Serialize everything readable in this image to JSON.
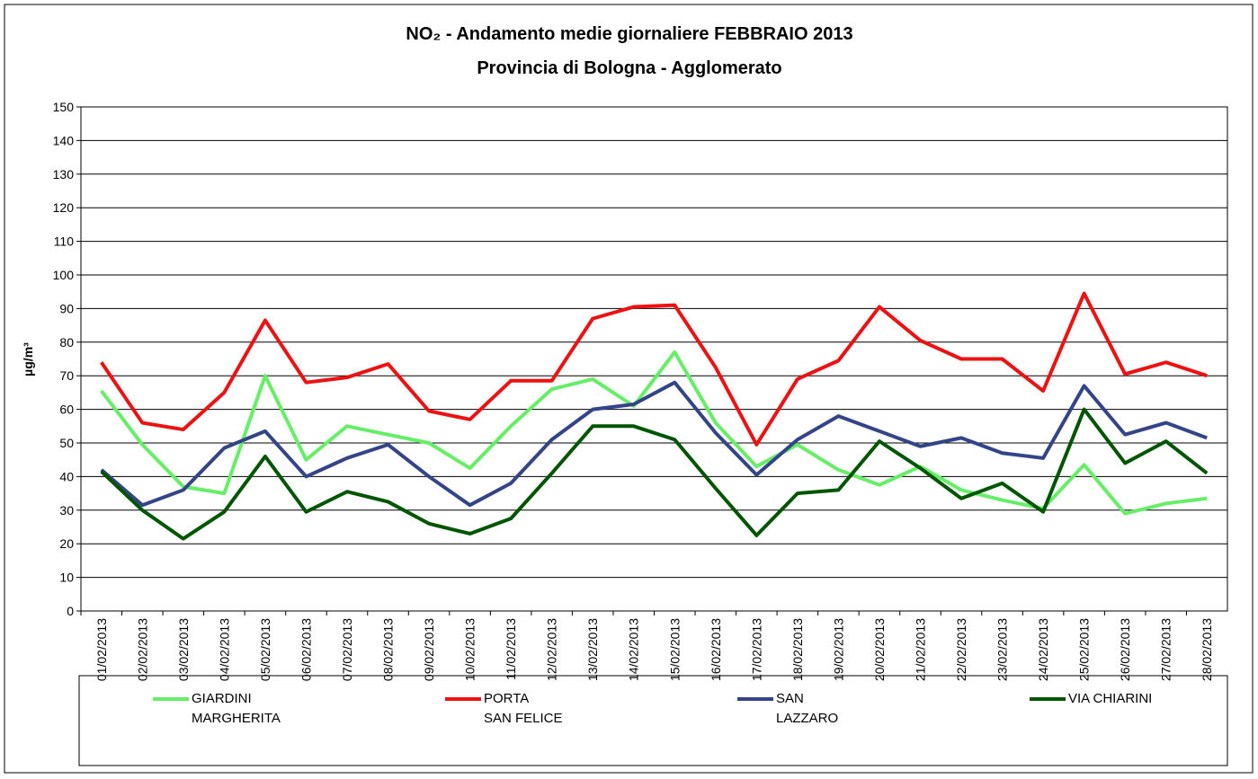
{
  "chart_data": {
    "type": "line",
    "title": [
      "NO₂ - Andamento medie giornaliere FEBBRAIO 2013",
      "Provincia di Bologna - Agglomerato"
    ],
    "ylabel": "µg/m³",
    "categories": [
      "01/02/2013",
      "02/02/2013",
      "03/02/2013",
      "04/02/2013",
      "05/02/2013",
      "06/02/2013",
      "07/02/2013",
      "08/02/2013",
      "09/02/2013",
      "10/02/2013",
      "11/02/2013",
      "12/02/2013",
      "13/02/2013",
      "14/02/2013",
      "15/02/2013",
      "16/02/2013",
      "17/02/2013",
      "18/02/2013",
      "19/02/2013",
      "20/02/2013",
      "21/02/2013",
      "22/02/2013",
      "23/02/2013",
      "24/02/2013",
      "25/02/2013",
      "26/02/2013",
      "27/02/2013",
      "28/02/2013"
    ],
    "series": [
      {
        "name": "GIARDINI\nMARGHERITA",
        "color": "#66ee66",
        "values": [
          65.5,
          49.5,
          37,
          35,
          70,
          45,
          55,
          52.5,
          50,
          42.5,
          55,
          66,
          69,
          61,
          77,
          56,
          43,
          49.5,
          42,
          37.5,
          43,
          36,
          33,
          30.5,
          43.5,
          29,
          32,
          33.5
        ]
      },
      {
        "name": "PORTA\nSAN FELICE",
        "color": "#ee1111",
        "values": [
          74,
          56,
          54,
          65,
          86.5,
          68,
          69.5,
          73.5,
          59.5,
          57,
          68.5,
          68.5,
          87,
          90.5,
          91,
          72.5,
          49.5,
          69,
          74.5,
          90.5,
          80.5,
          75,
          75,
          65.5,
          94.5,
          70.5,
          74,
          70
        ]
      },
      {
        "name": "SAN\nLAZZARO",
        "color": "#334488",
        "values": [
          42,
          31.5,
          36,
          48.5,
          53.5,
          40,
          45.5,
          49.5,
          40,
          31.5,
          38,
          51,
          60,
          61.5,
          68,
          53,
          40.5,
          51,
          58,
          53.5,
          49,
          51.5,
          47,
          45.5,
          67,
          52.5,
          56,
          51.5
        ]
      },
      {
        "name": "VIA CHIARINI",
        "color": "#005500",
        "values": [
          41.5,
          30,
          21.5,
          29.5,
          46,
          29.5,
          35.5,
          32.5,
          26,
          23,
          27.5,
          41,
          55,
          55,
          51,
          36.5,
          22.5,
          35,
          36,
          50.5,
          42.5,
          33.5,
          38,
          29.5,
          60,
          44,
          50.5,
          41
        ]
      }
    ],
    "ylim": [
      0,
      150
    ],
    "yticks": [
      0,
      10,
      20,
      30,
      40,
      50,
      60,
      70,
      80,
      90,
      100,
      110,
      120,
      130,
      140,
      150
    ],
    "grid": true
  }
}
